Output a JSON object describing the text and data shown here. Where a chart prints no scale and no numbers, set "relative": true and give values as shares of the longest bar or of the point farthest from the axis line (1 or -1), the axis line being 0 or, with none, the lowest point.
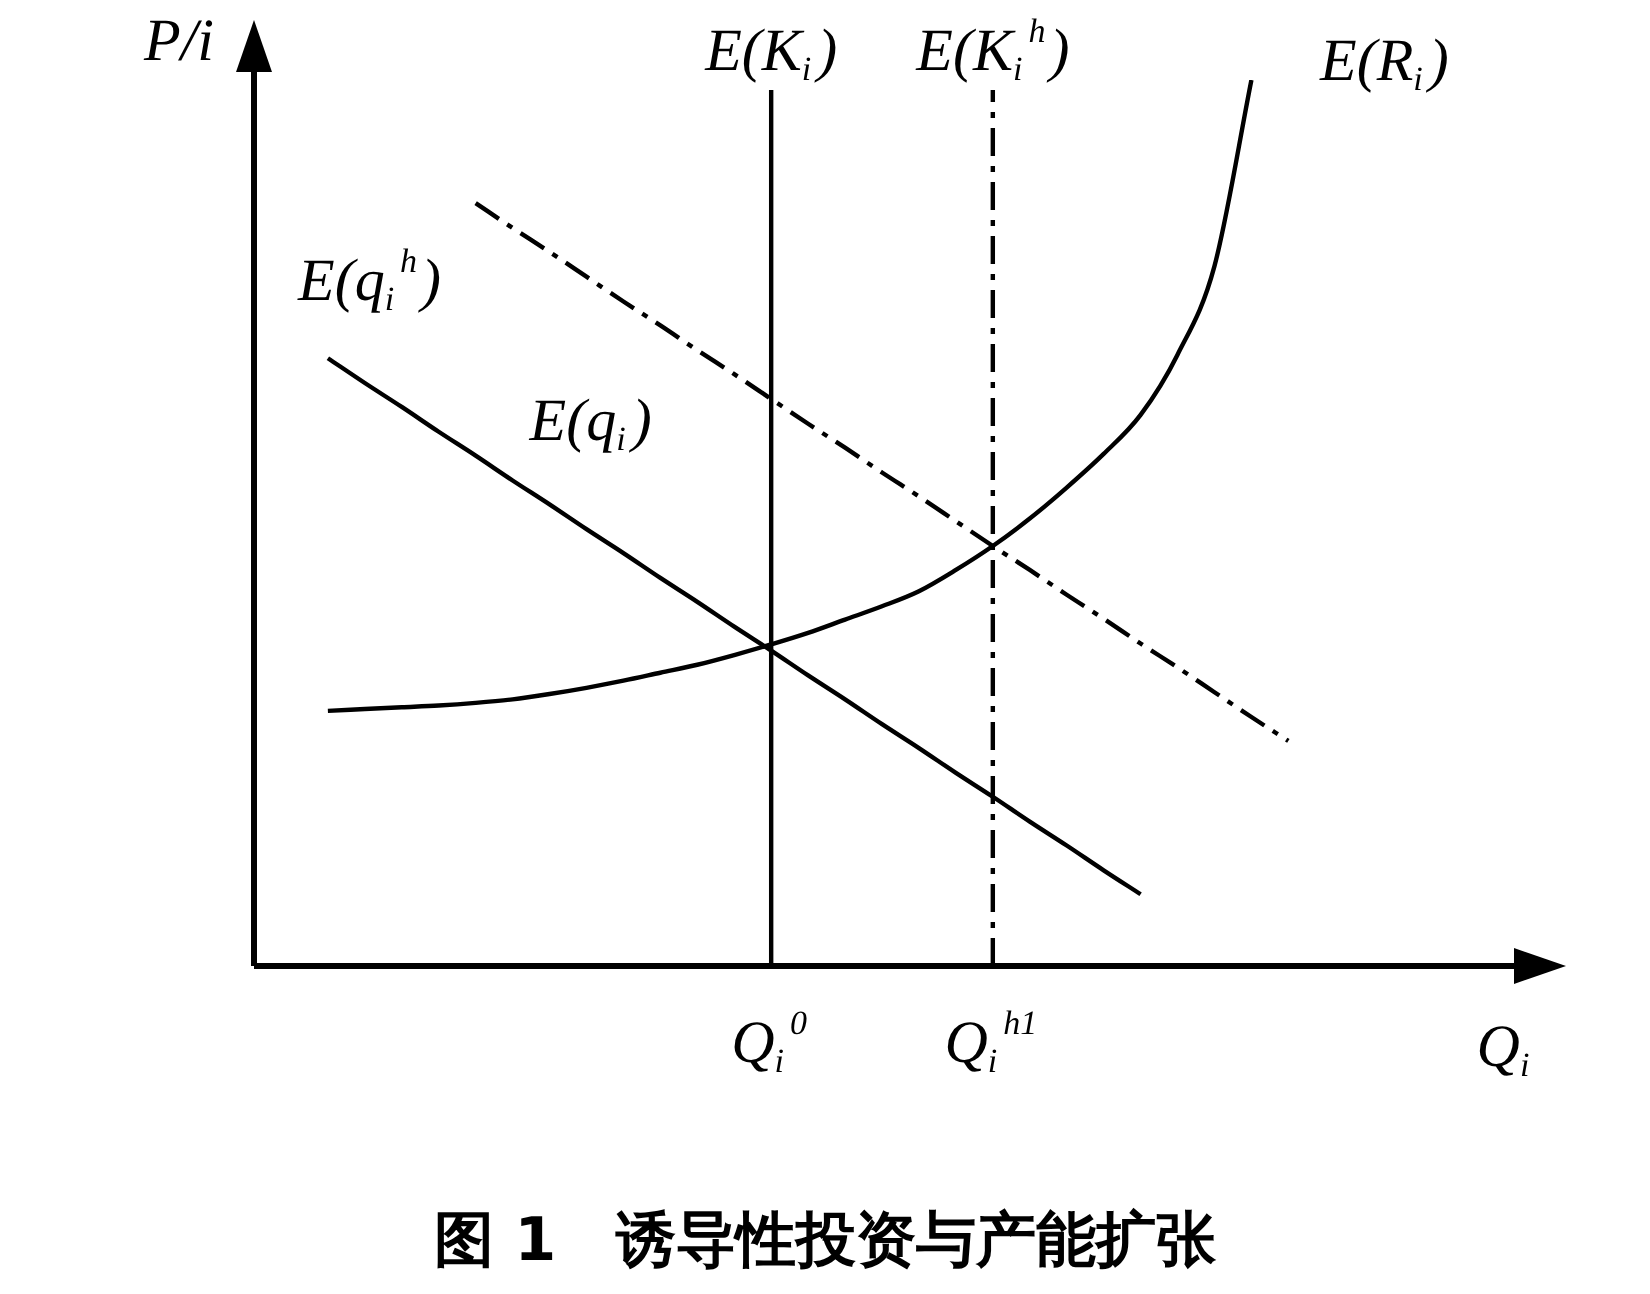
{
  "chart_data": {
    "type": "line",
    "relative": true,
    "title": "图 1　诱导性投资与产能扩张",
    "xlabel": "Q$_{i}$",
    "ylabel": "P/i",
    "legend": false,
    "marker": "none",
    "tick_labels": "x",
    "categories": [
      null,
      null,
      null,
      null,
      null,
      null,
      null,
      null,
      null,
      null,
      null,
      null,
      null,
      null,
      "Q$_{i}$$^{0}$",
      null,
      null,
      null,
      null,
      null,
      "Q$_{i}$$^{h1}$",
      null,
      null,
      null,
      null,
      null,
      null,
      null,
      null,
      null,
      null,
      null,
      null,
      null,
      null
    ],
    "series": [
      {
        "color": "#000000",
        "line_style": "solid",
        "values": [
          null,
          null,
          0.686,
          0.658,
          0.631,
          0.603,
          0.576,
          0.548,
          0.521,
          0.493,
          0.466,
          0.438,
          0.411,
          0.383,
          0.356,
          0.328,
          0.301,
          0.273,
          0.246,
          0.218,
          0.191,
          0.163,
          0.136,
          0.108,
          0.081,
          null,
          null,
          null,
          null,
          null,
          null,
          null,
          null,
          null,
          null
        ]
      },
      {
        "color": "#000000",
        "line_style": "dashed",
        "values": [
          null,
          null,
          null,
          null,
          null,
          null,
          0.861,
          0.833,
          0.806,
          0.778,
          0.75,
          0.723,
          0.695,
          0.668,
          0.64,
          0.612,
          0.585,
          0.557,
          0.53,
          0.502,
          0.474,
          0.447,
          0.419,
          0.392,
          0.364,
          0.337,
          0.309,
          0.281,
          0.254,
          null,
          null,
          null,
          null,
          null,
          null
        ]
      },
      {
        "color": "#000000",
        "line_style": "solid",
        "values": [
          null,
          null,
          0.288,
          0.29,
          0.292,
          0.294,
          0.297,
          0.301,
          0.307,
          0.314,
          0.322,
          0.331,
          0.34,
          0.351,
          0.363,
          0.376,
          0.391,
          0.406,
          0.423,
          0.447,
          0.474,
          0.505,
          0.54,
          0.578,
          0.622,
          0.69,
          0.79,
          1.0,
          null,
          null,
          null,
          null,
          null,
          null,
          null
        ]
      }
    ],
    "ref_lines": [
      {
        "axis": "x",
        "value": "Q$_{i}$$^{0}$",
        "label": "E(K$_{i}$)",
        "line_style": "solid",
        "color": "#000000"
      },
      {
        "axis": "x",
        "value": "Q$_{i}$$^{h1}$",
        "label": "E(K$_{i}$$^{h}$)",
        "line_style": "dashed",
        "color": "#000000"
      }
    ],
    "annotations": [
      "E(q$_{i}$)",
      "E(q$_{i}$$^{h}$)",
      "E(R$_{i}$)"
    ]
  }
}
